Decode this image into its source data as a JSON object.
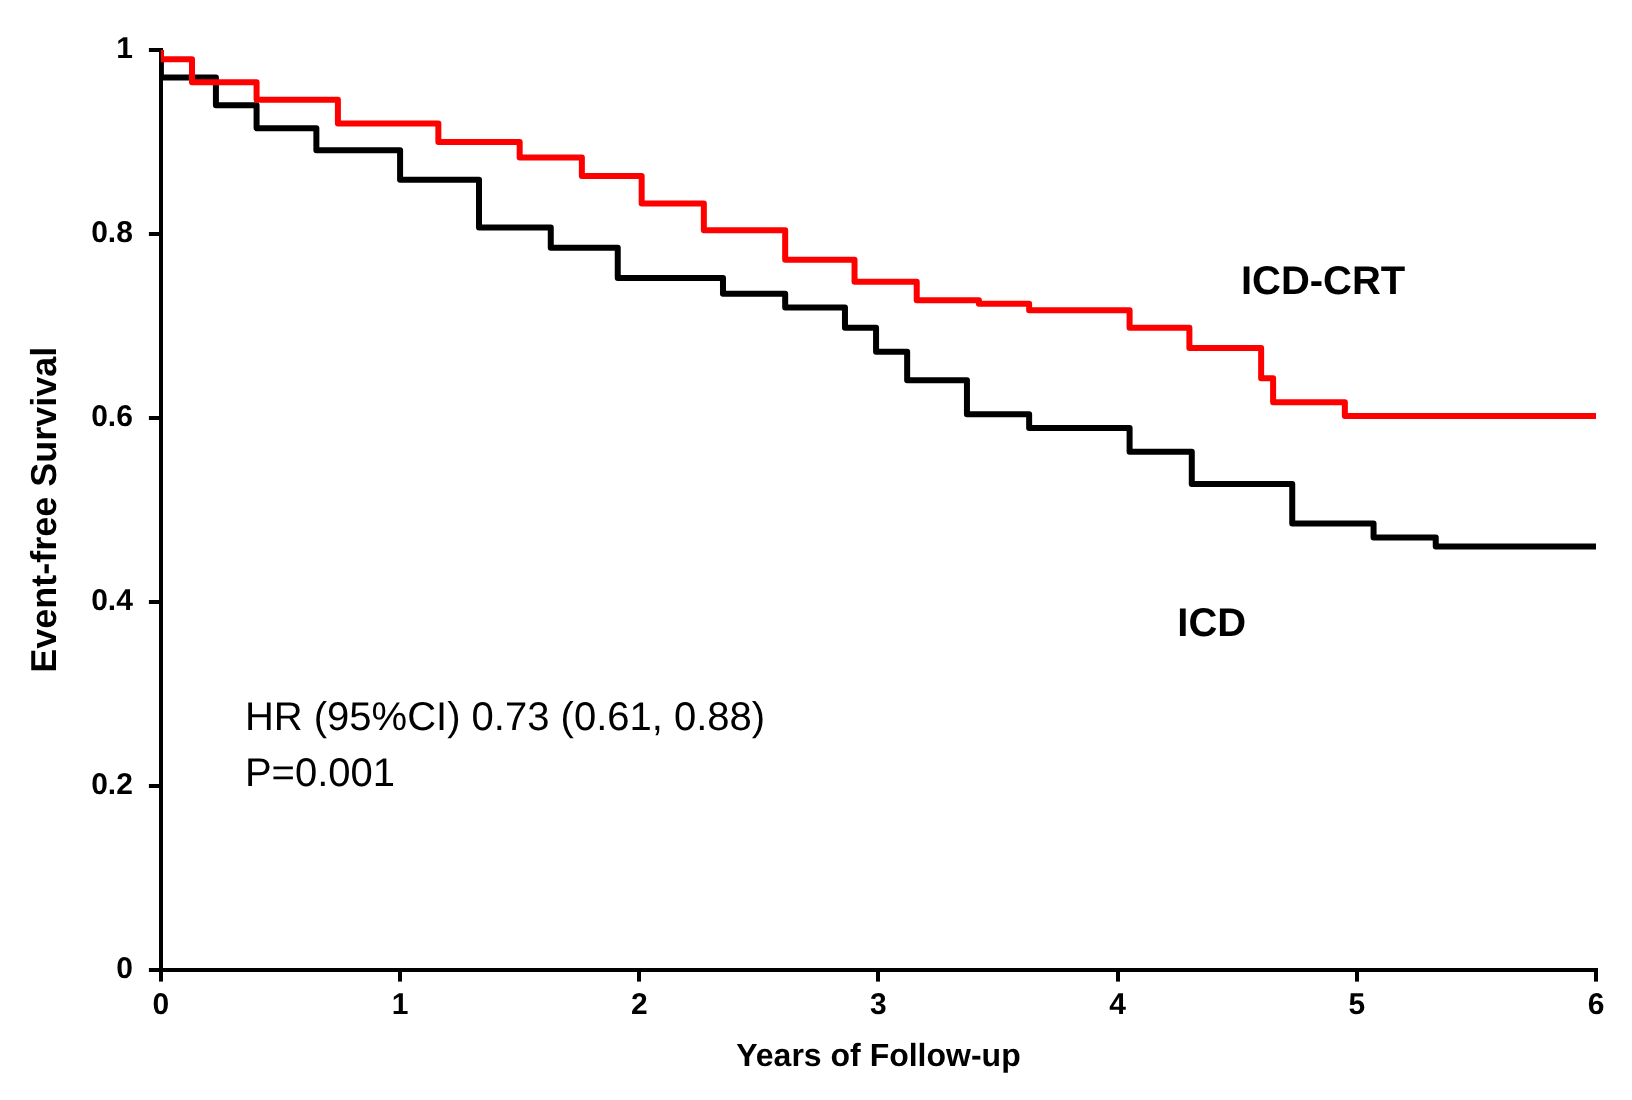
{
  "chart_data": {
    "type": "step",
    "xlabel": "Years of Follow-up",
    "ylabel": "Event-free Survival",
    "xlim": [
      0,
      6
    ],
    "xticks": [
      0,
      1,
      2,
      3,
      4,
      5,
      6
    ],
    "ylim": [
      0,
      1
    ],
    "yticks": [
      0,
      0.2,
      0.4,
      0.6,
      0.8,
      1
    ],
    "grid": false,
    "legend": false,
    "marker": "none",
    "line_style": "solid",
    "series": [
      {
        "name": "ICD-CRT",
        "color": "#ff0000",
        "x": [
          0,
          0.13,
          0.4,
          0.74,
          1.16,
          1.5,
          1.76,
          2.01,
          2.27,
          2.61,
          2.9,
          3.16,
          3.42,
          3.63,
          4.05,
          4.3,
          4.6,
          4.65,
          4.95,
          6
        ],
        "values": [
          1,
          0.99,
          0.965,
          0.946,
          0.92,
          0.9,
          0.883,
          0.863,
          0.833,
          0.804,
          0.772,
          0.748,
          0.728,
          0.724,
          0.717,
          0.698,
          0.676,
          0.643,
          0.617,
          0.602
        ]
      },
      {
        "name": "ICD",
        "color": "#000000",
        "x": [
          0,
          0.23,
          0.4,
          0.65,
          1.0,
          1.33,
          1.63,
          1.91,
          2.35,
          2.61,
          2.86,
          2.99,
          3.12,
          3.37,
          3.63,
          4.05,
          4.31,
          4.73,
          5.07,
          5.33,
          5.35,
          6
        ],
        "values": [
          1,
          0.97,
          0.94,
          0.915,
          0.891,
          0.859,
          0.807,
          0.785,
          0.752,
          0.735,
          0.72,
          0.698,
          0.672,
          0.641,
          0.604,
          0.589,
          0.563,
          0.528,
          0.485,
          0.47,
          0.46,
          0.46
        ]
      }
    ],
    "annotations": [
      "HR (95%CI) 0.73 (0.61, 0.88)",
      "P=0.001"
    ]
  }
}
